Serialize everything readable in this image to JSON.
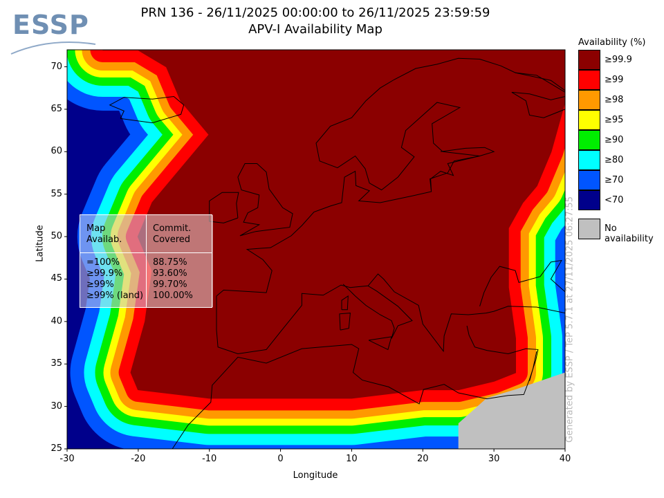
{
  "logo": {
    "text": "ESSP"
  },
  "title": {
    "line1": "PRN 136 - 26/11/2025 00:00:00 to 26/11/2025 23:59:59",
    "line2": "APV-I Availability Map"
  },
  "colors": {
    "ge99_9": "#8b0000",
    "ge99": "#ff0000",
    "ge98": "#ff9900",
    "ge95": "#ffff00",
    "ge90": "#00ee00",
    "ge80": "#00ffff",
    "ge70": "#0055ff",
    "lt70": "#00008b",
    "no_availability": "#c0c0c0",
    "coast": "#000000"
  },
  "chart_data": {
    "type": "heatmap",
    "title": "APV-I Availability Map",
    "xlabel": "Longitude",
    "ylabel": "Latitude",
    "xlim": [
      -30,
      40
    ],
    "ylim": [
      25,
      72
    ],
    "x_ticks": [
      "-30",
      "-20",
      "-10",
      "0",
      "10",
      "20",
      "30",
      "40"
    ],
    "y_ticks": [
      "25",
      "30",
      "35",
      "40",
      "45",
      "50",
      "55",
      "60",
      "65",
      "70"
    ],
    "legend_title": "Availability (%)",
    "legend": [
      {
        "label": "≥99.9",
        "color_key": "ge99_9"
      },
      {
        "label": "≥99",
        "color_key": "ge99"
      },
      {
        "label": "≥98",
        "color_key": "ge98"
      },
      {
        "label": "≥95",
        "color_key": "ge95"
      },
      {
        "label": "≥90",
        "color_key": "ge90"
      },
      {
        "label": "≥80",
        "color_key": "ge80"
      },
      {
        "label": "≥70",
        "color_key": "ge70"
      },
      {
        "label": "<70",
        "color_key": "lt70"
      }
    ],
    "no_availability_label": "No availability",
    "stats": {
      "header_left": [
        "Map",
        "Availab."
      ],
      "header_right": [
        "Commit.",
        "Covered"
      ],
      "rows": [
        {
          "level": "=100%",
          "covered": "88.75%"
        },
        {
          "level": "≥99.9%",
          "covered": "93.60%"
        },
        {
          "level": "≥99%",
          "covered": "99.70%"
        },
        {
          "level": "≥99% (land)",
          "covered": "100.00%"
        }
      ]
    },
    "side_note": "Generated by ESSP / TeP 5.7.1 at 27/11/2025 06:27:55",
    "core_region_polygon_lonlat": [
      [
        -25,
        72
      ],
      [
        -20,
        72
      ],
      [
        -16,
        70
      ],
      [
        -14,
        66
      ],
      [
        -12,
        64
      ],
      [
        -10,
        62
      ],
      [
        -14,
        58
      ],
      [
        -18,
        54
      ],
      [
        -20,
        50
      ],
      [
        -18,
        46
      ],
      [
        -19,
        40
      ],
      [
        -21,
        34
      ],
      [
        -20,
        32
      ],
      [
        -10,
        31
      ],
      [
        0,
        31
      ],
      [
        10,
        31
      ],
      [
        20,
        32
      ],
      [
        25,
        32
      ],
      [
        30,
        33
      ],
      [
        33,
        34
      ],
      [
        33,
        38
      ],
      [
        32,
        44
      ],
      [
        32,
        46
      ],
      [
        32,
        51
      ],
      [
        34,
        54
      ],
      [
        36,
        56
      ],
      [
        38,
        60
      ],
      [
        40,
        66
      ],
      [
        40,
        72
      ]
    ]
  }
}
